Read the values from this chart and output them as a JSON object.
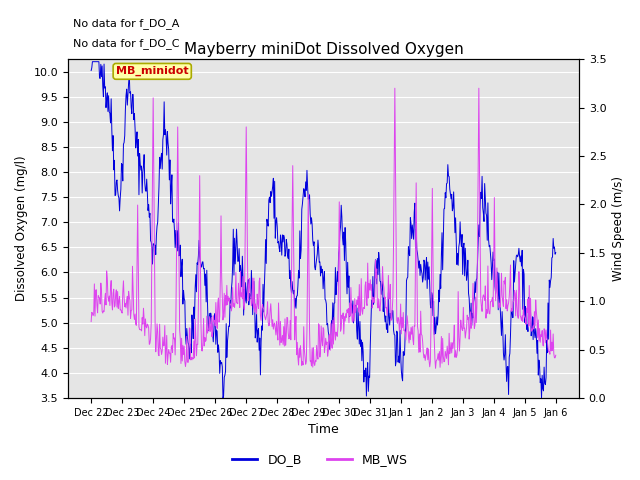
{
  "title": "Mayberry miniDot Dissolved Oxygen",
  "xlabel": "Time",
  "ylabel_left": "Dissolved Oxygen (mg/l)",
  "ylabel_right": "Wind Speed (m/s)",
  "ylim_left": [
    3.5,
    10.25
  ],
  "ylim_right": [
    0.0,
    3.5
  ],
  "yticks_left": [
    3.5,
    4.0,
    4.5,
    5.0,
    5.5,
    6.0,
    6.5,
    7.0,
    7.5,
    8.0,
    8.5,
    9.0,
    9.5,
    10.0
  ],
  "yticks_right": [
    0.0,
    0.5,
    1.0,
    1.5,
    2.0,
    2.5,
    3.0,
    3.5
  ],
  "do_b_color": "#0000dd",
  "mb_ws_color": "#dd44ee",
  "legend_do_b": "DO_B",
  "legend_mb_ws": "MB_WS",
  "annotation_text1": "No data for f_DO_A",
  "annotation_text2": "No data for f_DO_C",
  "tooltip_text": "MB_minidot",
  "tooltip_color": "#ffffaa",
  "tooltip_border": "#aaaa00",
  "tooltip_text_color": "#cc0000",
  "background_color": "#e5e5e5",
  "grid_color": "#ffffff",
  "n_points": 720,
  "days": 15.0
}
